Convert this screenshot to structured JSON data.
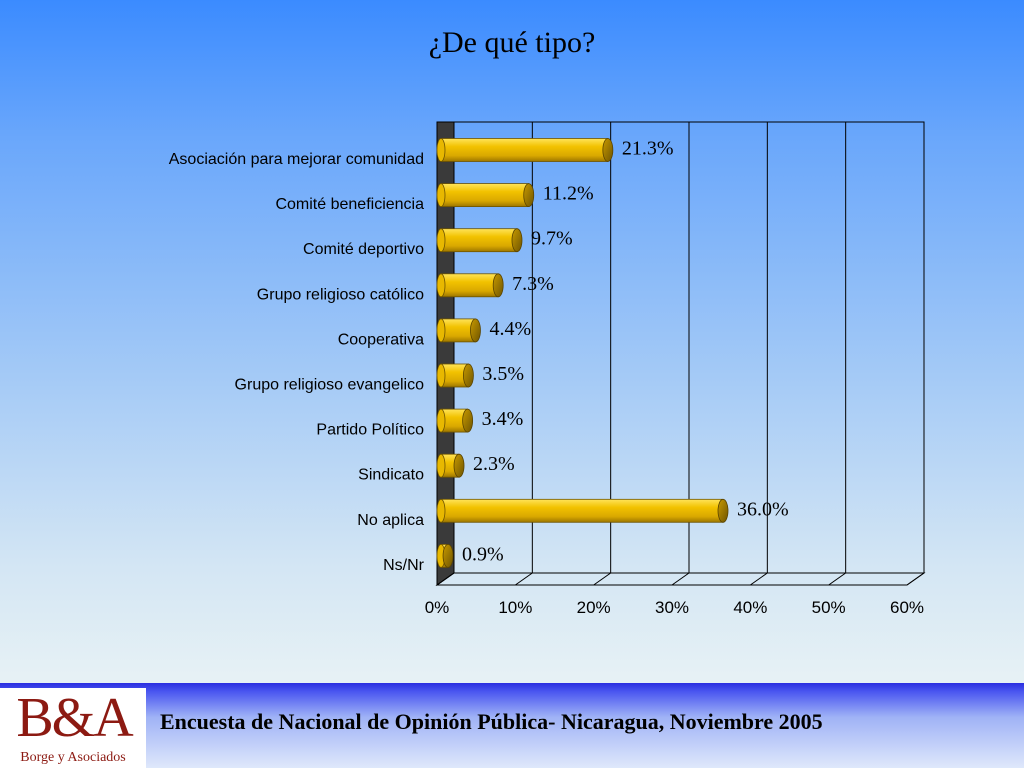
{
  "slide": {
    "title": "¿De qué tipo?",
    "footer": "Encuesta de Nacional de Opinión Pública- Nicaragua, Noviembre 2005",
    "logo_mark": "B&A",
    "logo_text": "Borge y Asociados"
  },
  "chart_data": {
    "type": "bar",
    "orientation": "horizontal",
    "style": "3d-cylinder",
    "title": "¿De qué tipo?",
    "categories": [
      "Asociación para mejorar comunidad",
      "Comité beneficiencia",
      "Comité deportivo",
      "Grupo religioso católico",
      "Cooperativa",
      "Grupo religioso evangelico",
      "Partido Político",
      "Sindicato",
      "No aplica",
      "Ns/Nr"
    ],
    "values": [
      21.3,
      11.2,
      9.7,
      7.3,
      4.4,
      3.5,
      3.4,
      2.3,
      36.0,
      0.9
    ],
    "data_labels": [
      "21.3%",
      "11.2%",
      "9.7%",
      "7.3%",
      "4.4%",
      "3.5%",
      "3.4%",
      "2.3%",
      "36.0%",
      "0.9%"
    ],
    "xlim": [
      0,
      60
    ],
    "xticks": [
      "0%",
      "10%",
      "20%",
      "30%",
      "40%",
      "50%",
      "60%"
    ],
    "grid": "vertical",
    "legend": "none",
    "colors": {
      "bar": "#f2c200",
      "bar_highlight": "#ffe45a",
      "bar_shadow": "#b08400",
      "bar_cap": "#8a6a00",
      "wall": "#3a3a3a"
    }
  }
}
